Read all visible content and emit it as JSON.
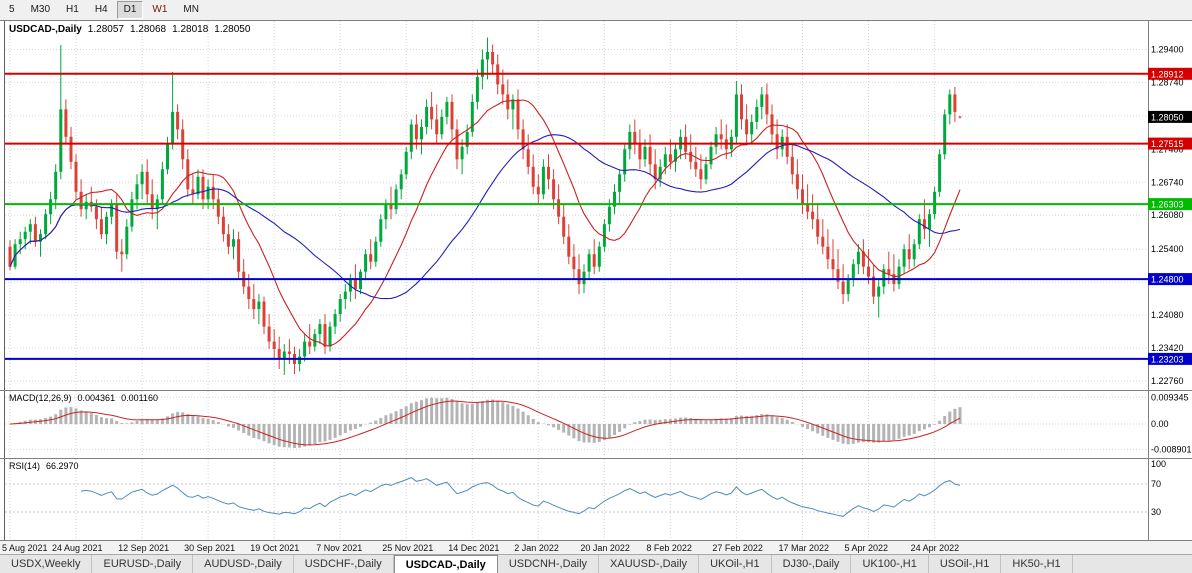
{
  "toolbar": {
    "timeframes": [
      {
        "label": "5",
        "active": false
      },
      {
        "label": "M30",
        "active": false
      },
      {
        "label": "H1",
        "active": false
      },
      {
        "label": "H4",
        "active": false
      },
      {
        "label": "D1",
        "active": true
      },
      {
        "label": "W1",
        "active": false,
        "color": "#7b1500"
      },
      {
        "label": "MN",
        "active": false
      }
    ]
  },
  "chart_header": {
    "symbol": "USDCAD-,Daily",
    "open": "1.28057",
    "high": "1.28068",
    "low": "1.28018",
    "close": "1.28050"
  },
  "tabs": {
    "items": [
      {
        "label": "USDX,Weekly",
        "active": false
      },
      {
        "label": "EURUSD-,Daily",
        "active": false
      },
      {
        "label": "AUDUSD-,Daily",
        "active": false
      },
      {
        "label": "USDCHF-,Daily",
        "active": false
      },
      {
        "label": "USDCAD-,Daily",
        "active": true
      },
      {
        "label": "USDCNH-,Daily",
        "active": false
      },
      {
        "label": "XAUUSD-,Daily",
        "active": false
      },
      {
        "label": "UKOil-,H1",
        "active": false
      },
      {
        "label": "DJ30-,Daily",
        "active": false
      },
      {
        "label": "UK100-,H1",
        "active": false
      },
      {
        "label": "USOil-,H1",
        "active": false
      },
      {
        "label": "HK50-,H1",
        "active": false
      }
    ]
  },
  "chart_data": {
    "type": "candlestick",
    "symbol": "USDCAD-,Daily",
    "timeframe": "Daily",
    "y_range": [
      1.227,
      1.2987
    ],
    "y_axis_labels": [
      "1.29400",
      "1.28740",
      "1.28070",
      "1.27400",
      "1.26740",
      "1.26080",
      "1.25400",
      "1.24740",
      "1.24080",
      "1.23420",
      "1.22760"
    ],
    "x_labels": [
      "5 Aug 2021",
      "24 Aug 2021",
      "12 Sep 2021",
      "30 Sep 2021",
      "19 Oct 2021",
      "7 Nov 2021",
      "25 Nov 2021",
      "14 Dec 2021",
      "2 Jan 2022",
      "20 Jan 2022",
      "8 Feb 2022",
      "27 Feb 2022",
      "17 Mar 2022",
      "5 Apr 2022",
      "24 Apr 2022"
    ],
    "x_label_indices": [
      0,
      13,
      26,
      39,
      52,
      65,
      78,
      91,
      104,
      117,
      130,
      143,
      156,
      169,
      182
    ],
    "grid_color": "#d6d6d6",
    "bull_fill": "#00a93c",
    "bear_fill": "#dc4036",
    "levels": [
      {
        "name": "resistance-1",
        "value": 1.28912,
        "label": "1.28912",
        "color": "#d40000"
      },
      {
        "name": "resistance-2",
        "value": 1.27515,
        "label": "1.27515",
        "color": "#d40000"
      },
      {
        "name": "pivot-green",
        "value": 1.26303,
        "label": "1.26303",
        "color": "#00bb00"
      },
      {
        "name": "support-1",
        "value": 1.248,
        "label": "1.24800",
        "color": "#0000cc"
      },
      {
        "name": "support-2",
        "value": 1.23203,
        "label": "1.23203",
        "color": "#0000cc"
      }
    ],
    "current_price": {
      "value": 1.2805,
      "label": "1.28050",
      "color": "#000000"
    },
    "moving_averages": [
      {
        "name": "ma-fast-line",
        "period": 13,
        "color": "#cc2020"
      },
      {
        "name": "ma-slow-line",
        "period": 34,
        "color": "#2020bb"
      }
    ],
    "indicators": {
      "macd": {
        "label": "MACD(12,26,9)",
        "value": "0.004361",
        "signal_value": "0.001160",
        "fast": 12,
        "slow": 26,
        "signal": 9,
        "axis_values": [
          0.009345,
          0,
          -0.008901
        ],
        "axis_labels": [
          "0.009345",
          "0.00",
          "-0.008901"
        ],
        "y_max": 0.0105,
        "histogram_color": "#b4b4b4",
        "signal_color": "#cc2222"
      },
      "rsi": {
        "label": "RSI(14)",
        "value": "66.2970",
        "period": 14,
        "axis_values": [
          100,
          70,
          30
        ],
        "axis_labels": [
          "100",
          "70",
          "30"
        ],
        "level_lines": [
          70,
          30
        ],
        "line_color": "#4e8cbe"
      }
    },
    "candles": [
      [
        1.2545,
        1.2558,
        1.2498,
        1.2505
      ],
      [
        1.2505,
        1.256,
        1.25,
        1.255
      ],
      [
        1.255,
        1.2575,
        1.253,
        1.256
      ],
      [
        1.256,
        1.2585,
        1.254,
        1.2575
      ],
      [
        1.2575,
        1.26,
        1.255,
        1.259
      ],
      [
        1.259,
        1.2605,
        1.2545,
        1.2555
      ],
      [
        1.2555,
        1.258,
        1.2525,
        1.257
      ],
      [
        1.257,
        1.262,
        1.256,
        1.261
      ],
      [
        1.261,
        1.2655,
        1.259,
        1.264
      ],
      [
        1.264,
        1.271,
        1.262,
        1.2695
      ],
      [
        1.2695,
        1.2949,
        1.268,
        1.282
      ],
      [
        1.282,
        1.284,
        1.275,
        1.2765
      ],
      [
        1.2765,
        1.2785,
        1.27,
        1.2715
      ],
      [
        1.2715,
        1.273,
        1.264,
        1.2655
      ],
      [
        1.2655,
        1.268,
        1.2605,
        1.262
      ],
      [
        1.262,
        1.265,
        1.26,
        1.2635
      ],
      [
        1.2635,
        1.2665,
        1.2615,
        1.2625
      ],
      [
        1.2625,
        1.264,
        1.258,
        1.26
      ],
      [
        1.26,
        1.2625,
        1.256,
        1.257
      ],
      [
        1.257,
        1.2615,
        1.255,
        1.2605
      ],
      [
        1.2605,
        1.264,
        1.259,
        1.263
      ],
      [
        1.263,
        1.265,
        1.252,
        1.2535
      ],
      [
        1.2535,
        1.256,
        1.2495,
        1.253
      ],
      [
        1.253,
        1.26,
        1.252,
        1.2585
      ],
      [
        1.2585,
        1.2655,
        1.2575,
        1.264
      ],
      [
        1.264,
        1.269,
        1.262,
        1.267
      ],
      [
        1.267,
        1.271,
        1.264,
        1.2695
      ],
      [
        1.2695,
        1.272,
        1.263,
        1.265
      ],
      [
        1.265,
        1.268,
        1.26,
        1.262
      ],
      [
        1.262,
        1.265,
        1.258,
        1.264
      ],
      [
        1.264,
        1.2715,
        1.263,
        1.27
      ],
      [
        1.27,
        1.2765,
        1.269,
        1.275
      ],
      [
        1.275,
        1.2895,
        1.274,
        1.2815
      ],
      [
        1.2815,
        1.283,
        1.276,
        1.278
      ],
      [
        1.278,
        1.28,
        1.27,
        1.272
      ],
      [
        1.272,
        1.274,
        1.2645,
        1.266
      ],
      [
        1.266,
        1.269,
        1.263,
        1.265
      ],
      [
        1.265,
        1.27,
        1.264,
        1.2685
      ],
      [
        1.2685,
        1.27,
        1.262,
        1.264
      ],
      [
        1.264,
        1.268,
        1.262,
        1.2665
      ],
      [
        1.2665,
        1.269,
        1.262,
        1.264
      ],
      [
        1.264,
        1.266,
        1.259,
        1.2605
      ],
      [
        1.2605,
        1.2625,
        1.2555,
        1.257
      ],
      [
        1.257,
        1.259,
        1.253,
        1.2545
      ],
      [
        1.2545,
        1.258,
        1.252,
        1.256
      ],
      [
        1.256,
        1.2575,
        1.248,
        1.2495
      ],
      [
        1.2495,
        1.252,
        1.245,
        1.2465
      ],
      [
        1.2465,
        1.249,
        1.242,
        1.244
      ],
      [
        1.244,
        1.247,
        1.24,
        1.242
      ],
      [
        1.242,
        1.245,
        1.239,
        1.2435
      ],
      [
        1.2435,
        1.2445,
        1.237,
        1.2385
      ],
      [
        1.2385,
        1.241,
        1.234,
        1.2355
      ],
      [
        1.2355,
        1.238,
        1.232,
        1.234
      ],
      [
        1.234,
        1.2365,
        1.23,
        1.232
      ],
      [
        1.232,
        1.235,
        1.2288,
        1.2335
      ],
      [
        1.2335,
        1.236,
        1.231,
        1.233
      ],
      [
        1.233,
        1.2345,
        1.229,
        1.231
      ],
      [
        1.231,
        1.234,
        1.2295,
        1.2325
      ],
      [
        1.2325,
        1.237,
        1.2315,
        1.2355
      ],
      [
        1.2355,
        1.239,
        1.233,
        1.2345
      ],
      [
        1.2345,
        1.238,
        1.2335,
        1.237
      ],
      [
        1.237,
        1.24,
        1.235,
        1.239
      ],
      [
        1.239,
        1.241,
        1.233,
        1.2345
      ],
      [
        1.2345,
        1.2395,
        1.2335,
        1.2385
      ],
      [
        1.2385,
        1.242,
        1.237,
        1.241
      ],
      [
        1.241,
        1.245,
        1.2395,
        1.244
      ],
      [
        1.244,
        1.247,
        1.242,
        1.2455
      ],
      [
        1.2455,
        1.249,
        1.2435,
        1.248
      ],
      [
        1.248,
        1.251,
        1.244,
        1.246
      ],
      [
        1.246,
        1.25,
        1.245,
        1.2495
      ],
      [
        1.2495,
        1.254,
        1.248,
        1.253
      ],
      [
        1.253,
        1.256,
        1.25,
        1.2515
      ],
      [
        1.2515,
        1.2565,
        1.2505,
        1.2555
      ],
      [
        1.2555,
        1.261,
        1.2545,
        1.26
      ],
      [
        1.26,
        1.264,
        1.258,
        1.263
      ],
      [
        1.263,
        1.2665,
        1.26,
        1.262
      ],
      [
        1.262,
        1.267,
        1.261,
        1.266
      ],
      [
        1.266,
        1.27,
        1.264,
        1.269
      ],
      [
        1.269,
        1.2745,
        1.268,
        1.2735
      ],
      [
        1.2735,
        1.28,
        1.272,
        1.279
      ],
      [
        1.279,
        1.281,
        1.274,
        1.276
      ],
      [
        1.276,
        1.28,
        1.273,
        1.2785
      ],
      [
        1.2785,
        1.284,
        1.277,
        1.2825
      ],
      [
        1.2825,
        1.2855,
        1.278,
        1.28
      ],
      [
        1.28,
        1.283,
        1.275,
        1.277
      ],
      [
        1.277,
        1.282,
        1.276,
        1.2805
      ],
      [
        1.2805,
        1.2845,
        1.279,
        1.2835
      ],
      [
        1.2835,
        1.285,
        1.276,
        1.278
      ],
      [
        1.278,
        1.28,
        1.27,
        1.272
      ],
      [
        1.272,
        1.276,
        1.269,
        1.2745
      ],
      [
        1.2745,
        1.279,
        1.273,
        1.2775
      ],
      [
        1.2775,
        1.285,
        1.2765,
        1.2835
      ],
      [
        1.2835,
        1.29,
        1.282,
        1.2885
      ],
      [
        1.2885,
        1.294,
        1.286,
        1.292
      ],
      [
        1.292,
        1.2964,
        1.288,
        1.2935
      ],
      [
        1.2935,
        1.295,
        1.289,
        1.291
      ],
      [
        1.291,
        1.293,
        1.285,
        1.287
      ],
      [
        1.287,
        1.29,
        1.283,
        1.285
      ],
      [
        1.285,
        1.288,
        1.28,
        1.282
      ],
      [
        1.282,
        1.285,
        1.278,
        1.284
      ],
      [
        1.284,
        1.286,
        1.276,
        1.278
      ],
      [
        1.278,
        1.28,
        1.272,
        1.274
      ],
      [
        1.274,
        1.277,
        1.269,
        1.2705
      ],
      [
        1.2705,
        1.273,
        1.265,
        1.2665
      ],
      [
        1.2665,
        1.269,
        1.263,
        1.265
      ],
      [
        1.265,
        1.272,
        1.264,
        1.2705
      ],
      [
        1.2705,
        1.273,
        1.266,
        1.268
      ],
      [
        1.268,
        1.27,
        1.262,
        1.264
      ],
      [
        1.264,
        1.267,
        1.259,
        1.2605
      ],
      [
        1.2605,
        1.263,
        1.255,
        1.2565
      ],
      [
        1.2565,
        1.259,
        1.251,
        1.2525
      ],
      [
        1.2525,
        1.255,
        1.248,
        1.25
      ],
      [
        1.25,
        1.253,
        1.245,
        1.247
      ],
      [
        1.247,
        1.251,
        1.2452,
        1.2495
      ],
      [
        1.2495,
        1.254,
        1.248,
        1.253
      ],
      [
        1.253,
        1.256,
        1.249,
        1.2505
      ],
      [
        1.2505,
        1.2555,
        1.2495,
        1.2545
      ],
      [
        1.2545,
        1.26,
        1.2535,
        1.259
      ],
      [
        1.259,
        1.264,
        1.2575,
        1.2625
      ],
      [
        1.2625,
        1.267,
        1.261,
        1.2655
      ],
      [
        1.2655,
        1.27,
        1.263,
        1.269
      ],
      [
        1.269,
        1.275,
        1.2675,
        1.274
      ],
      [
        1.274,
        1.279,
        1.272,
        1.2775
      ],
      [
        1.2775,
        1.28,
        1.273,
        1.275
      ],
      [
        1.275,
        1.278,
        1.27,
        1.272
      ],
      [
        1.272,
        1.276,
        1.2705,
        1.2745
      ],
      [
        1.2745,
        1.277,
        1.269,
        1.271
      ],
      [
        1.271,
        1.274,
        1.266,
        1.268
      ],
      [
        1.268,
        1.272,
        1.2665,
        1.2705
      ],
      [
        1.2705,
        1.2745,
        1.269,
        1.273
      ],
      [
        1.273,
        1.276,
        1.27,
        1.2715
      ],
      [
        1.2715,
        1.275,
        1.2695,
        1.274
      ],
      [
        1.274,
        1.278,
        1.272,
        1.2765
      ],
      [
        1.2765,
        1.279,
        1.272,
        1.2735
      ],
      [
        1.2735,
        1.277,
        1.27,
        1.2715
      ],
      [
        1.2715,
        1.2745,
        1.2685,
        1.27
      ],
      [
        1.27,
        1.273,
        1.266,
        1.268
      ],
      [
        1.268,
        1.2725,
        1.267,
        1.271
      ],
      [
        1.271,
        1.2755,
        1.27,
        1.2745
      ],
      [
        1.2745,
        1.2785,
        1.273,
        1.277
      ],
      [
        1.277,
        1.28,
        1.274,
        1.276
      ],
      [
        1.276,
        1.279,
        1.272,
        1.274
      ],
      [
        1.274,
        1.278,
        1.2725,
        1.2765
      ],
      [
        1.2765,
        1.2877,
        1.275,
        1.285
      ],
      [
        1.285,
        1.287,
        1.278,
        1.28
      ],
      [
        1.28,
        1.283,
        1.275,
        1.277
      ],
      [
        1.277,
        1.281,
        1.2755,
        1.2795
      ],
      [
        1.2795,
        1.284,
        1.278,
        1.2825
      ],
      [
        1.2825,
        1.2865,
        1.28,
        1.285
      ],
      [
        1.285,
        1.2872,
        1.279,
        1.281
      ],
      [
        1.281,
        1.283,
        1.275,
        1.277
      ],
      [
        1.277,
        1.28,
        1.272,
        1.274
      ],
      [
        1.274,
        1.278,
        1.2725,
        1.2765
      ],
      [
        1.2765,
        1.279,
        1.271,
        1.2725
      ],
      [
        1.2725,
        1.275,
        1.267,
        1.269
      ],
      [
        1.269,
        1.272,
        1.264,
        1.266
      ],
      [
        1.266,
        1.269,
        1.261,
        1.263
      ],
      [
        1.263,
        1.267,
        1.26,
        1.2615
      ],
      [
        1.2615,
        1.265,
        1.258,
        1.26
      ],
      [
        1.26,
        1.263,
        1.255,
        1.2565
      ],
      [
        1.2565,
        1.26,
        1.253,
        1.2545
      ],
      [
        1.2545,
        1.258,
        1.25,
        1.252
      ],
      [
        1.252,
        1.256,
        1.248,
        1.25
      ],
      [
        1.25,
        1.254,
        1.246,
        1.2475
      ],
      [
        1.2475,
        1.251,
        1.243,
        1.245
      ],
      [
        1.245,
        1.249,
        1.2435,
        1.248
      ],
      [
        1.248,
        1.252,
        1.2465,
        1.251
      ],
      [
        1.251,
        1.255,
        1.249,
        1.2535
      ],
      [
        1.2535,
        1.256,
        1.249,
        1.2505
      ],
      [
        1.2505,
        1.254,
        1.247,
        1.2485
      ],
      [
        1.2485,
        1.251,
        1.243,
        1.2445
      ],
      [
        1.2445,
        1.248,
        1.2403,
        1.2465
      ],
      [
        1.2465,
        1.251,
        1.245,
        1.25
      ],
      [
        1.25,
        1.2535,
        1.247,
        1.249
      ],
      [
        1.249,
        1.253,
        1.2455,
        1.247
      ],
      [
        1.247,
        1.252,
        1.246,
        1.2505
      ],
      [
        1.2505,
        1.255,
        1.249,
        1.254
      ],
      [
        1.254,
        1.257,
        1.25,
        1.252
      ],
      [
        1.252,
        1.256,
        1.2505,
        1.255
      ],
      [
        1.255,
        1.261,
        1.254,
        1.26
      ],
      [
        1.26,
        1.264,
        1.256,
        1.258
      ],
      [
        1.258,
        1.262,
        1.2545,
        1.261
      ],
      [
        1.261,
        1.2665,
        1.26,
        1.2655
      ],
      [
        1.2655,
        1.274,
        1.2645,
        1.273
      ],
      [
        1.273,
        1.282,
        1.272,
        1.281
      ],
      [
        1.281,
        1.286,
        1.279,
        1.285
      ],
      [
        1.285,
        1.2865,
        1.2795,
        1.2815
      ],
      [
        1.28057,
        1.28068,
        1.28018,
        1.2805
      ]
    ]
  }
}
